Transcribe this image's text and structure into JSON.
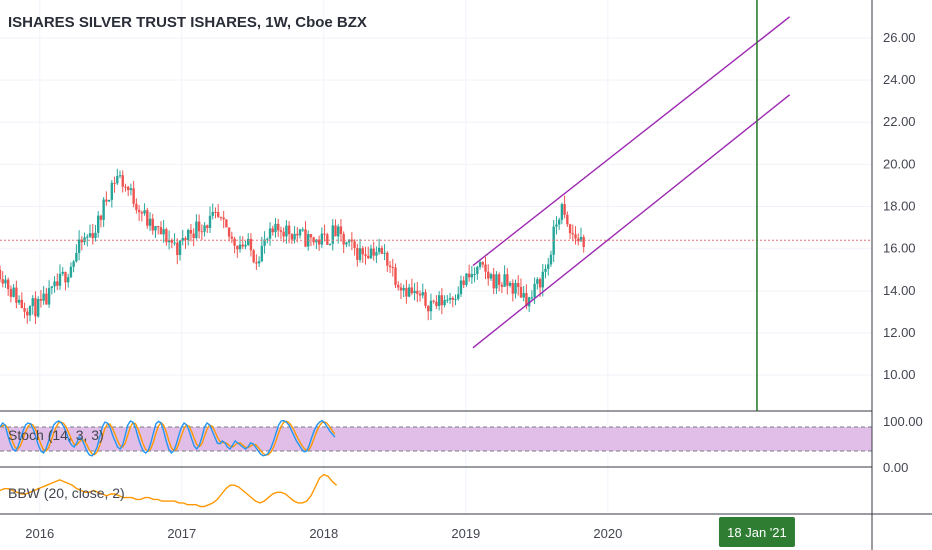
{
  "header": {
    "title": "ISHARES SILVER TRUST ISHARES, 1W, Cboe BZX"
  },
  "indicators": {
    "stoch_label": "Stoch (14, 3, 3)",
    "bbw_label": "BBW (20, close, 2)"
  },
  "colors": {
    "candle_up": "#26a69a",
    "candle_down": "#ef5350",
    "channel": "#9c27b0",
    "marker_line": "#2e7d32",
    "price_line": "#e57373",
    "stoch_k": "#2196f3",
    "stoch_d": "#ff9800",
    "stoch_band": "#e1bee7",
    "bbw": "#ff9800"
  },
  "chart_data": {
    "type": "candlestick",
    "timeframe": "1W",
    "y_ticks": [
      "26.00",
      "24.00",
      "22.00",
      "20.00",
      "18.00",
      "16.00",
      "14.00",
      "12.00",
      "10.00"
    ],
    "y_tick_values": [
      26,
      24,
      22,
      20,
      18,
      16,
      14,
      12,
      10
    ],
    "ylim": [
      8.3,
      27.8
    ],
    "x_ticks": [
      "2016",
      "2017",
      "2018",
      "2019",
      "2020"
    ],
    "x_tick_values": [
      2016,
      2017,
      2018,
      2019,
      2020
    ],
    "xlim": [
      2015.72,
      2021.86
    ],
    "current_price": 16.4,
    "marker": {
      "label": "18 Jan '21",
      "x": 2021.05
    },
    "price_path": [
      [
        2015.72,
        15.0
      ],
      [
        2015.8,
        14.0
      ],
      [
        2015.88,
        13.3
      ],
      [
        2016.0,
        13.2
      ],
      [
        2016.1,
        14.0
      ],
      [
        2016.2,
        15.0
      ],
      [
        2016.3,
        16.3
      ],
      [
        2016.4,
        17.0
      ],
      [
        2016.5,
        19.0
      ],
      [
        2016.55,
        19.5
      ],
      [
        2016.62,
        18.8
      ],
      [
        2016.7,
        18.0
      ],
      [
        2016.78,
        17.0
      ],
      [
        2016.9,
        16.5
      ],
      [
        2016.98,
        16.0
      ],
      [
        2017.05,
        16.8
      ],
      [
        2017.15,
        17.2
      ],
      [
        2017.25,
        17.4
      ],
      [
        2017.35,
        16.4
      ],
      [
        2017.45,
        16.2
      ],
      [
        2017.52,
        15.6
      ],
      [
        2017.6,
        16.4
      ],
      [
        2017.7,
        17.0
      ],
      [
        2017.8,
        16.7
      ],
      [
        2017.9,
        16.4
      ],
      [
        2018.0,
        16.4
      ],
      [
        2018.08,
        16.8
      ],
      [
        2018.15,
        16.2
      ],
      [
        2018.25,
        15.8
      ],
      [
        2018.35,
        16.0
      ],
      [
        2018.45,
        15.5
      ],
      [
        2018.52,
        14.5
      ],
      [
        2018.6,
        14.0
      ],
      [
        2018.7,
        13.5
      ],
      [
        2018.8,
        13.4
      ],
      [
        2018.9,
        13.8
      ],
      [
        2019.0,
        14.5
      ],
      [
        2019.1,
        15.0
      ],
      [
        2019.2,
        14.5
      ],
      [
        2019.3,
        14.3
      ],
      [
        2019.4,
        13.9
      ],
      [
        2019.45,
        13.5
      ],
      [
        2019.52,
        14.5
      ],
      [
        2019.58,
        15.3
      ],
      [
        2019.63,
        17.0
      ],
      [
        2019.67,
        18.0
      ],
      [
        2019.72,
        16.8
      ],
      [
        2019.78,
        16.5
      ],
      [
        2019.83,
        16.4
      ]
    ],
    "candle_count": 215,
    "channel_lines": [
      {
        "x1": 2019.05,
        "y1": 15.2,
        "x2": 2021.28,
        "y2": 27.0
      },
      {
        "x1": 2019.05,
        "y1": 11.3,
        "x2": 2021.28,
        "y2": 23.3
      }
    ],
    "stoch": {
      "label": "Stoch (14, 3, 3)",
      "axis_labels": [
        "100.00",
        "0.00"
      ],
      "upper_band": 80,
      "lower_band": 20,
      "k_start": 2015.72,
      "k_step": 0.018,
      "k": [
        80,
        90,
        85,
        60,
        40,
        25,
        20,
        30,
        50,
        70,
        85,
        90,
        88,
        75,
        55,
        35,
        20,
        15,
        25,
        45,
        65,
        85,
        92,
        95,
        90,
        80,
        65,
        45,
        35,
        30,
        40,
        55,
        50,
        35,
        20,
        10,
        8,
        15,
        30,
        55,
        80,
        92,
        90,
        80,
        60,
        45,
        30,
        25,
        35,
        60,
        85,
        95,
        92,
        78,
        55,
        35,
        20,
        15,
        22,
        40,
        65,
        88,
        94,
        90,
        70,
        45,
        25,
        15,
        20,
        38,
        60,
        80,
        90,
        85,
        70,
        50,
        32,
        25,
        35,
        55,
        80,
        90,
        85,
        70,
        55,
        40,
        38,
        45,
        40,
        30,
        25,
        35,
        45,
        40,
        35,
        30,
        25,
        30,
        40,
        38,
        30,
        20,
        12,
        8,
        10,
        15,
        28,
        45,
        65,
        85,
        95,
        96,
        92,
        85,
        72,
        58,
        45,
        35,
        25,
        18,
        20,
        35,
        55,
        72,
        85,
        92,
        96,
        90,
        80,
        70,
        62,
        55
      ]
    },
    "bbw": {
      "label": "BBW (20, close, 2)",
      "start": 2015.72,
      "step": 0.03,
      "values": [
        0.14,
        0.15,
        0.15,
        0.14,
        0.13,
        0.12,
        0.12,
        0.13,
        0.14,
        0.15,
        0.16,
        0.17,
        0.18,
        0.19,
        0.2,
        0.19,
        0.18,
        0.17,
        0.15,
        0.14,
        0.13,
        0.13,
        0.14,
        0.13,
        0.12,
        0.11,
        0.12,
        0.12,
        0.11,
        0.1,
        0.1,
        0.1,
        0.09,
        0.09,
        0.1,
        0.1,
        0.09,
        0.09,
        0.08,
        0.08,
        0.08,
        0.08,
        0.07,
        0.07,
        0.06,
        0.06,
        0.06,
        0.05,
        0.05,
        0.06,
        0.07,
        0.09,
        0.12,
        0.15,
        0.17,
        0.17,
        0.16,
        0.14,
        0.12,
        0.1,
        0.08,
        0.07,
        0.08,
        0.1,
        0.12,
        0.13,
        0.13,
        0.12,
        0.1,
        0.08,
        0.07,
        0.07,
        0.08,
        0.11,
        0.16,
        0.21,
        0.23,
        0.22,
        0.19,
        0.17
      ]
    }
  }
}
